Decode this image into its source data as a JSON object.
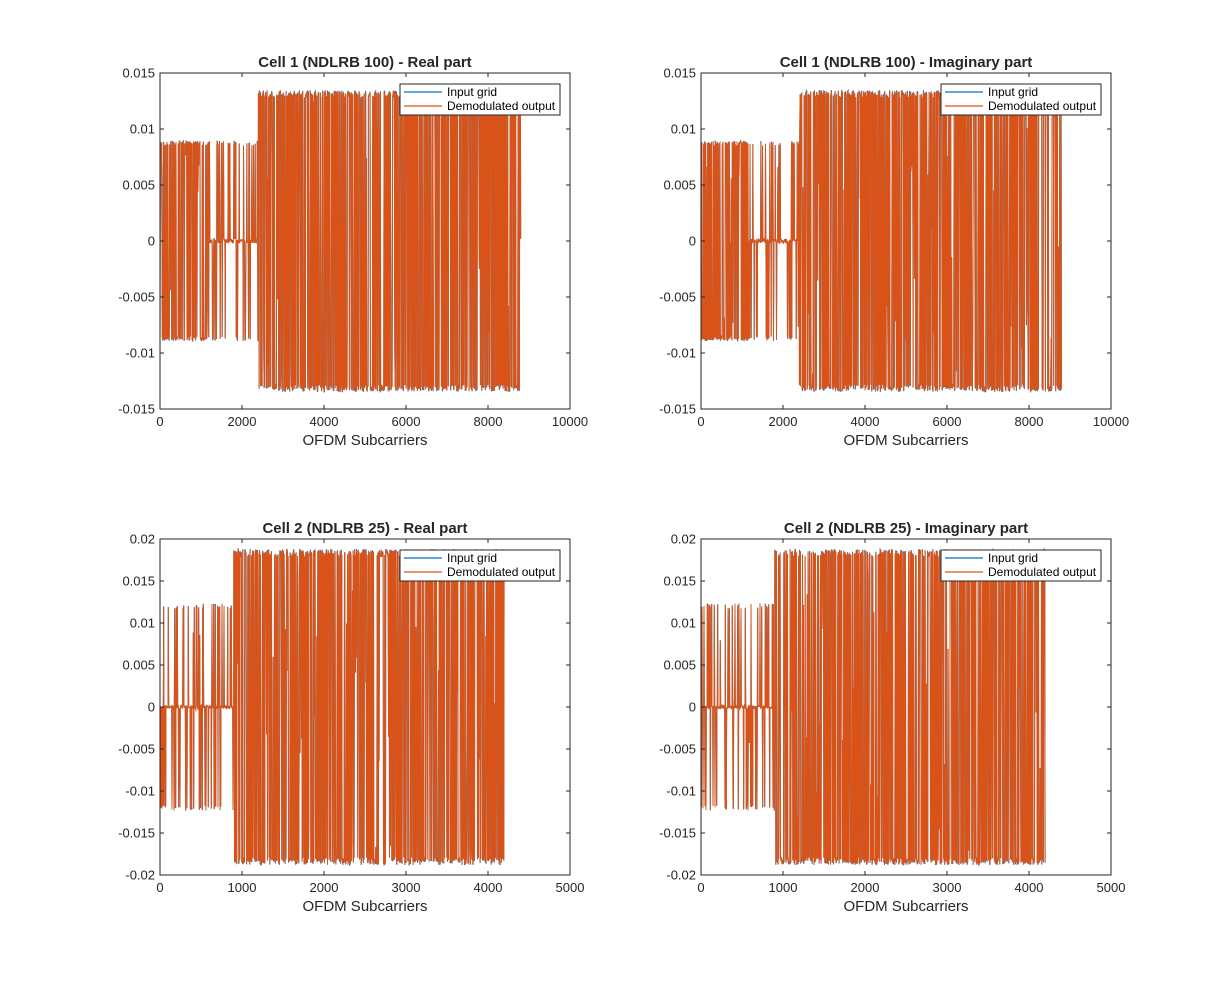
{
  "chart_data": [
    {
      "type": "line",
      "title": "Cell 1 (NDLRB 100) - Real part",
      "xlabel": "OFDM Subcarriers",
      "ylabel": "",
      "xlim": [
        0,
        10000
      ],
      "ylim": [
        -0.015,
        0.015
      ],
      "xticks": [
        0,
        2000,
        4000,
        6000,
        8000,
        10000
      ],
      "xtick_labels": [
        "0",
        "2000",
        "4000",
        "6000",
        "8000",
        "10000"
      ],
      "yticks": [
        -0.015,
        -0.01,
        -0.005,
        0,
        0.005,
        0.01,
        0.015
      ],
      "ytick_labels": [
        "-0.015",
        "-0.01",
        "-0.005",
        "0",
        "0.005",
        "0.01",
        "0.015"
      ],
      "legend_position": "top-right",
      "series": [
        {
          "name": "Input grid",
          "color": "#0072BD"
        },
        {
          "name": "Demodulated output",
          "color": "#D95319"
        }
      ],
      "segments": [
        {
          "x0": 0,
          "x1": 1200,
          "amp": 0.0087
        },
        {
          "x0": 1200,
          "x1": 2400,
          "amp": 0.0087,
          "sparse": true
        },
        {
          "x0": 2400,
          "x1": 8800,
          "amp": 0.0131
        }
      ]
    },
    {
      "type": "line",
      "title": "Cell 1 (NDLRB 100) - Imaginary part",
      "xlabel": "OFDM Subcarriers",
      "ylabel": "",
      "xlim": [
        0,
        10000
      ],
      "ylim": [
        -0.015,
        0.015
      ],
      "xticks": [
        0,
        2000,
        4000,
        6000,
        8000,
        10000
      ],
      "xtick_labels": [
        "0",
        "2000",
        "4000",
        "6000",
        "8000",
        "10000"
      ],
      "yticks": [
        -0.015,
        -0.01,
        -0.005,
        0,
        0.005,
        0.01,
        0.015
      ],
      "ytick_labels": [
        "-0.015",
        "-0.01",
        "-0.005",
        "0",
        "0.005",
        "0.01",
        "0.015"
      ],
      "legend_position": "top-right",
      "series": [
        {
          "name": "Input grid",
          "color": "#0072BD"
        },
        {
          "name": "Demodulated output",
          "color": "#D95319"
        }
      ],
      "segments": [
        {
          "x0": 0,
          "x1": 1200,
          "amp": 0.0087
        },
        {
          "x0": 1200,
          "x1": 2400,
          "amp": 0.0087,
          "sparse": true
        },
        {
          "x0": 2400,
          "x1": 8800,
          "amp": 0.0131
        }
      ]
    },
    {
      "type": "line",
      "title": "Cell 2 (NDLRB 25) - Real part",
      "xlabel": "OFDM Subcarriers",
      "ylabel": "",
      "xlim": [
        0,
        5000
      ],
      "ylim": [
        -0.02,
        0.02
      ],
      "xticks": [
        0,
        1000,
        2000,
        3000,
        4000,
        5000
      ],
      "xtick_labels": [
        "0",
        "1000",
        "2000",
        "3000",
        "4000",
        "5000"
      ],
      "yticks": [
        -0.02,
        -0.015,
        -0.01,
        -0.005,
        0,
        0.005,
        0.01,
        0.015,
        0.02
      ],
      "ytick_labels": [
        "-0.02",
        "-0.015",
        "-0.01",
        "-0.005",
        "0",
        "0.005",
        "0.01",
        "0.015",
        "0.02"
      ],
      "legend_position": "top-right",
      "series": [
        {
          "name": "Input grid",
          "color": "#0072BD"
        },
        {
          "name": "Demodulated output",
          "color": "#D95319"
        }
      ],
      "segments": [
        {
          "x0": 0,
          "x1": 900,
          "amp": 0.012,
          "sparse": true
        },
        {
          "x0": 900,
          "x1": 4200,
          "amp": 0.0183
        }
      ]
    },
    {
      "type": "line",
      "title": "Cell 2 (NDLRB 25) - Imaginary part",
      "xlabel": "OFDM Subcarriers",
      "ylabel": "",
      "xlim": [
        0,
        5000
      ],
      "ylim": [
        -0.02,
        0.02
      ],
      "xticks": [
        0,
        1000,
        2000,
        3000,
        4000,
        5000
      ],
      "xtick_labels": [
        "0",
        "1000",
        "2000",
        "3000",
        "4000",
        "5000"
      ],
      "yticks": [
        -0.02,
        -0.015,
        -0.01,
        -0.005,
        0,
        0.005,
        0.01,
        0.015,
        0.02
      ],
      "ytick_labels": [
        "-0.02",
        "-0.015",
        "-0.01",
        "-0.005",
        "0",
        "0.005",
        "0.01",
        "0.015",
        "0.02"
      ],
      "legend_position": "top-right",
      "series": [
        {
          "name": "Input grid",
          "color": "#0072BD"
        },
        {
          "name": "Demodulated output",
          "color": "#D95319"
        }
      ],
      "segments": [
        {
          "x0": 0,
          "x1": 900,
          "amp": 0.012,
          "sparse": true
        },
        {
          "x0": 900,
          "x1": 4200,
          "amp": 0.0183
        }
      ]
    }
  ]
}
